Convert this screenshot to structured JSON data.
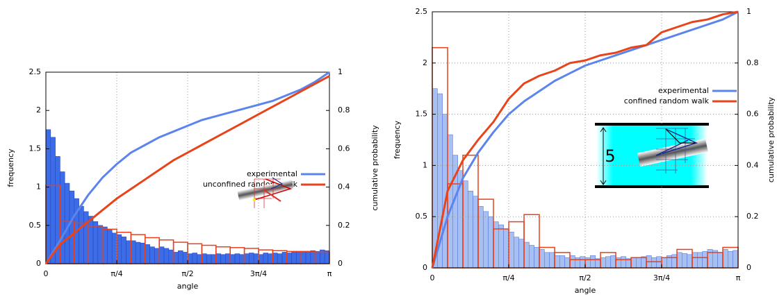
{
  "chart_data": [
    {
      "type": "histogram",
      "xlabel": "angle",
      "ylabel": "frequency",
      "y2label": "cumulative probability",
      "xlim": [
        0,
        3.1416
      ],
      "xticks": [
        {
          "value": 0,
          "label": "0"
        },
        {
          "value": 0.7854,
          "label": "π/4"
        },
        {
          "value": 1.5708,
          "label": "π/2"
        },
        {
          "value": 2.3562,
          "label": "3π/4"
        },
        {
          "value": 3.1416,
          "label": "π"
        }
      ],
      "ylim": [
        0,
        2.5
      ],
      "yticks": [
        0,
        0.5,
        1,
        1.5,
        2,
        2.5
      ],
      "y2lim": [
        0,
        1
      ],
      "y2ticks": [
        0,
        0.2,
        0.4,
        0.6,
        0.8,
        1
      ],
      "grid": [
        "x"
      ],
      "legend": "right",
      "histograms": [
        {
          "style": "filled",
          "color": "#3d6de6",
          "edgecolor": "#2546c8",
          "bins": [
            0,
            0.0524,
            0.1047,
            0.1571,
            0.2094,
            0.2618,
            0.3142,
            0.3665,
            0.4189,
            0.4712,
            0.5236,
            0.576,
            0.6283,
            0.6807,
            0.733,
            0.7854,
            0.8378,
            0.8901,
            0.9425,
            0.9948,
            1.0472,
            1.0996,
            1.1519,
            1.2043,
            1.2566,
            1.309,
            1.3614,
            1.4137,
            1.4661,
            1.5184,
            1.5708,
            1.6232,
            1.6755,
            1.7279,
            1.7802,
            1.8326,
            1.885,
            1.9373,
            1.9897,
            2.042,
            2.0944,
            2.1468,
            2.1991,
            2.2515,
            2.3038,
            2.3562,
            2.4086,
            2.4609,
            2.5133,
            2.5656,
            2.618,
            2.6704,
            2.7227,
            2.7751,
            2.8274,
            2.8798,
            2.9322,
            2.9845,
            3.0369,
            3.0892,
            3.1416
          ],
          "counts": [
            1.75,
            1.65,
            1.4,
            1.2,
            1.05,
            0.95,
            0.85,
            0.75,
            0.68,
            0.62,
            0.55,
            0.5,
            0.48,
            0.45,
            0.4,
            0.38,
            0.35,
            0.3,
            0.3,
            0.28,
            0.27,
            0.25,
            0.22,
            0.2,
            0.22,
            0.2,
            0.18,
            0.15,
            0.17,
            0.15,
            0.13,
            0.14,
            0.12,
            0.13,
            0.12,
            0.12,
            0.13,
            0.12,
            0.13,
            0.12,
            0.13,
            0.12,
            0.13,
            0.14,
            0.13,
            0.12,
            0.14,
            0.13,
            0.14,
            0.13,
            0.15,
            0.14,
            0.15,
            0.15,
            0.16,
            0.15,
            0.17,
            0.16,
            0.18,
            0.17
          ]
        },
        {
          "style": "step",
          "color": "#e8401c",
          "bins": [
            0,
            0.1571,
            0.3142,
            0.4712,
            0.6283,
            0.7854,
            0.9425,
            1.0996,
            1.2566,
            1.4137,
            1.5708,
            1.7279,
            1.885,
            2.042,
            2.1991,
            2.3562,
            2.5133,
            2.6704,
            2.8274,
            2.9845,
            3.1416
          ],
          "counts": [
            1.02,
            0.55,
            0.53,
            0.49,
            0.45,
            0.41,
            0.38,
            0.34,
            0.31,
            0.28,
            0.26,
            0.24,
            0.22,
            0.21,
            0.2,
            0.18,
            0.17,
            0.16,
            0.16,
            0.15
          ]
        }
      ],
      "x": [
        0,
        0.1571,
        0.3142,
        0.4712,
        0.6283,
        0.7854,
        0.9425,
        1.0996,
        1.2566,
        1.4137,
        1.5708,
        1.7279,
        1.885,
        2.042,
        2.1991,
        2.3562,
        2.5133,
        2.6704,
        2.8274,
        2.9845,
        3.1416
      ],
      "series": [
        {
          "name": "experimental",
          "color": "#5b84ec",
          "axis": "y2",
          "values": [
            0,
            0.12,
            0.25,
            0.36,
            0.45,
            0.52,
            0.58,
            0.62,
            0.66,
            0.69,
            0.72,
            0.75,
            0.77,
            0.79,
            0.81,
            0.83,
            0.85,
            0.88,
            0.91,
            0.95,
            1
          ]
        },
        {
          "name": "unconfined random walk",
          "color": "#e8441a",
          "axis": "y2",
          "values": [
            0,
            0.1,
            0.16,
            0.22,
            0.28,
            0.34,
            0.39,
            0.44,
            0.49,
            0.54,
            0.58,
            0.62,
            0.66,
            0.7,
            0.74,
            0.78,
            0.82,
            0.86,
            0.9,
            0.94,
            0.98
          ]
        }
      ]
    },
    {
      "type": "histogram",
      "xlabel": "angle",
      "ylabel": "frequency",
      "y2label": "cumulative probability",
      "inset_label": "5",
      "xlim": [
        0,
        3.1416
      ],
      "xticks": [
        {
          "value": 0,
          "label": "0"
        },
        {
          "value": 0.7854,
          "label": "π/4"
        },
        {
          "value": 1.5708,
          "label": "π/2"
        },
        {
          "value": 2.3562,
          "label": "3π/4"
        },
        {
          "value": 3.1416,
          "label": "π"
        }
      ],
      "ylim": [
        0,
        2.5
      ],
      "yticks": [
        0,
        0.5,
        1,
        1.5,
        2,
        2.5
      ],
      "y2lim": [
        0,
        1
      ],
      "y2ticks": [
        0,
        0.2,
        0.4,
        0.6,
        0.8,
        1
      ],
      "grid": [
        "x",
        "y"
      ],
      "legend": "right",
      "histograms": [
        {
          "style": "filled",
          "color": "#a8bff2",
          "edgecolor": "#5a7be0",
          "bins": [
            0,
            0.0524,
            0.1047,
            0.1571,
            0.2094,
            0.2618,
            0.3142,
            0.3665,
            0.4189,
            0.4712,
            0.5236,
            0.576,
            0.6283,
            0.6807,
            0.733,
            0.7854,
            0.8378,
            0.8901,
            0.9425,
            0.9948,
            1.0472,
            1.0996,
            1.1519,
            1.2043,
            1.2566,
            1.309,
            1.3614,
            1.4137,
            1.4661,
            1.5184,
            1.5708,
            1.6232,
            1.6755,
            1.7279,
            1.7802,
            1.8326,
            1.885,
            1.9373,
            1.9897,
            2.042,
            2.0944,
            2.1468,
            2.1991,
            2.2515,
            2.3038,
            2.3562,
            2.4086,
            2.4609,
            2.5133,
            2.5656,
            2.618,
            2.6704,
            2.7227,
            2.7751,
            2.8274,
            2.8798,
            2.9322,
            2.9845,
            3.0369,
            3.0892,
            3.1416
          ],
          "counts": [
            1.75,
            1.7,
            1.5,
            1.3,
            1.1,
            0.95,
            0.85,
            0.75,
            0.7,
            0.6,
            0.55,
            0.5,
            0.45,
            0.42,
            0.38,
            0.35,
            0.3,
            0.28,
            0.25,
            0.22,
            0.2,
            0.18,
            0.15,
            0.15,
            0.12,
            0.12,
            0.1,
            0.12,
            0.1,
            0.11,
            0.1,
            0.12,
            0.09,
            0.1,
            0.11,
            0.12,
            0.1,
            0.11,
            0.09,
            0.1,
            0.1,
            0.11,
            0.12,
            0.1,
            0.11,
            0.1,
            0.12,
            0.13,
            0.15,
            0.14,
            0.13,
            0.15,
            0.15,
            0.16,
            0.18,
            0.17,
            0.15,
            0.18,
            0.16,
            0.17
          ]
        },
        {
          "style": "step",
          "color": "#e8401c",
          "bins": [
            0,
            0.1571,
            0.3142,
            0.4712,
            0.6283,
            0.7854,
            0.9425,
            1.0996,
            1.2566,
            1.4137,
            1.5708,
            1.7279,
            1.885,
            2.042,
            2.1991,
            2.3562,
            2.5133,
            2.6704,
            2.8274,
            2.9845,
            3.1416
          ],
          "counts": [
            2.15,
            0.82,
            1.1,
            0.67,
            0.38,
            0.45,
            0.52,
            0.2,
            0.15,
            0.08,
            0.08,
            0.15,
            0.08,
            0.1,
            0.06,
            0.1,
            0.18,
            0.1,
            0.15,
            0.2
          ]
        }
      ],
      "x": [
        0,
        0.1571,
        0.3142,
        0.4712,
        0.6283,
        0.7854,
        0.9425,
        1.0996,
        1.2566,
        1.4137,
        1.5708,
        1.7279,
        1.885,
        2.042,
        2.1991,
        2.3562,
        2.5133,
        2.6704,
        2.8274,
        2.9845,
        3.1416
      ],
      "series": [
        {
          "name": "experimental",
          "color": "#5b84ec",
          "axis": "y2",
          "values": [
            0,
            0.2,
            0.35,
            0.45,
            0.53,
            0.6,
            0.65,
            0.69,
            0.73,
            0.76,
            0.79,
            0.81,
            0.83,
            0.85,
            0.87,
            0.89,
            0.91,
            0.93,
            0.95,
            0.97,
            1
          ]
        },
        {
          "name": "confined random walk",
          "color": "#e8441a",
          "axis": "y2",
          "values": [
            0,
            0.3,
            0.42,
            0.5,
            0.57,
            0.66,
            0.72,
            0.75,
            0.77,
            0.8,
            0.81,
            0.83,
            0.84,
            0.86,
            0.87,
            0.92,
            0.94,
            0.96,
            0.97,
            0.99,
            1
          ]
        }
      ]
    }
  ]
}
